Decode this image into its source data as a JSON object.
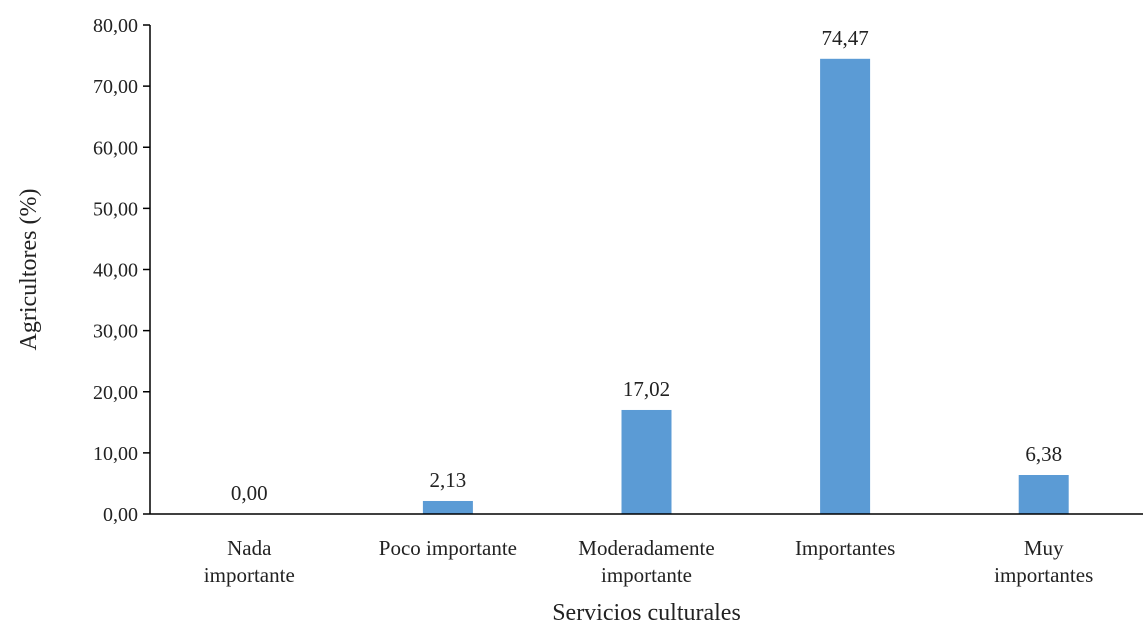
{
  "chart_data": {
    "type": "bar",
    "categories": [
      [
        "Nada",
        "importante"
      ],
      [
        "Poco importante"
      ],
      [
        "Moderadamente",
        "importante"
      ],
      [
        "Importantes"
      ],
      [
        "Muy",
        "importantes"
      ]
    ],
    "values": [
      0.0,
      2.13,
      17.02,
      74.47,
      6.38
    ],
    "value_labels": [
      "0,00",
      "2,13",
      "17,02",
      "74,47",
      "6,38"
    ],
    "yticks": [
      0,
      10,
      20,
      30,
      40,
      50,
      60,
      70,
      80
    ],
    "ytick_labels": [
      "0,00",
      "10,00",
      "20,00",
      "30,00",
      "40,00",
      "50,00",
      "60,00",
      "70,00",
      "80,00"
    ],
    "ylim": [
      0,
      80
    ],
    "xlabel": "Servicios culturales",
    "ylabel": "Agricultores (%)",
    "grid": false,
    "bar_color": "#5b9bd5"
  }
}
